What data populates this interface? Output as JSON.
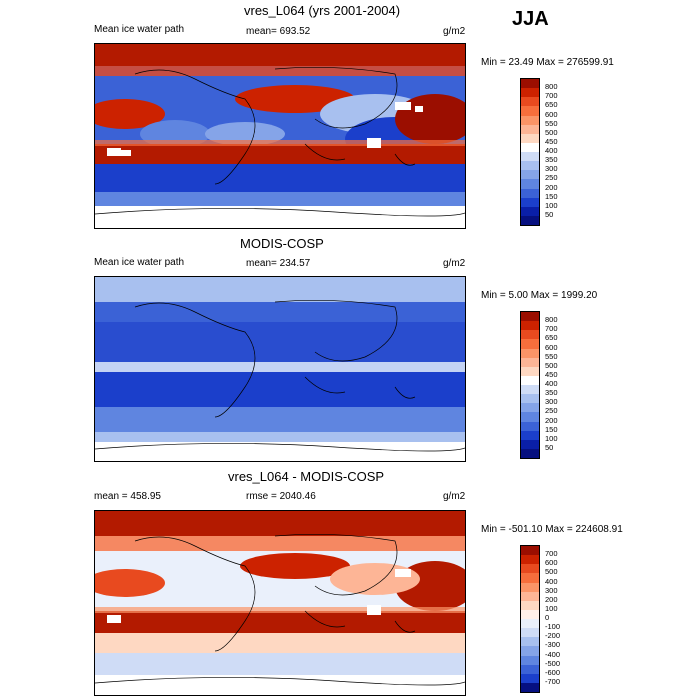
{
  "season": "JJA",
  "panels": [
    {
      "title": "vres_L064 (yrs 2001-2004)",
      "left_label": "Mean ice water path",
      "center_label": "mean= 693.52",
      "units": "g/m2",
      "minmax": "Min =  23.49 Max = 276599.91",
      "levels": [
        "800",
        "700",
        "650",
        "600",
        "550",
        "500",
        "450",
        "400",
        "350",
        "300",
        "250",
        "200",
        "150",
        "100",
        "50"
      ],
      "colors": [
        "#9b0e00",
        "#cc2200",
        "#e84a1f",
        "#f76e3c",
        "#fb9467",
        "#fdb596",
        "#fed8c2",
        "#ffffff",
        "#cfdcf6",
        "#a8c0ef",
        "#85a4e8",
        "#5f85e0",
        "#3b62d6",
        "#1b3fcb",
        "#0a1fa8",
        "#061080"
      ]
    },
    {
      "title": "MODIS-COSP",
      "left_label": "Mean ice water path",
      "center_label": "mean= 234.57",
      "units": "g/m2",
      "minmax": "Min =   5.00 Max = 1999.20",
      "levels": [
        "800",
        "700",
        "650",
        "600",
        "550",
        "500",
        "450",
        "400",
        "350",
        "300",
        "250",
        "200",
        "150",
        "100",
        "50"
      ],
      "colors": [
        "#9b0e00",
        "#cc2200",
        "#e84a1f",
        "#f76e3c",
        "#fb9467",
        "#fdb596",
        "#fed8c2",
        "#ffffff",
        "#cfdcf6",
        "#a8c0ef",
        "#85a4e8",
        "#5f85e0",
        "#3b62d6",
        "#1b3fcb",
        "#0a1fa8",
        "#061080"
      ]
    },
    {
      "title": "vres_L064 - MODIS-COSP",
      "left_label": "mean = 458.95",
      "center_label": "rmse = 2040.46",
      "units": "g/m2",
      "minmax": "Min = -501.10 Max = 224608.91",
      "levels": [
        "700",
        "600",
        "500",
        "400",
        "300",
        "200",
        "100",
        "0",
        "-100",
        "-200",
        "-300",
        "-400",
        "-500",
        "-600",
        "-700"
      ],
      "colors": [
        "#9b0e00",
        "#cc2200",
        "#e84a1f",
        "#f76e3c",
        "#fb9467",
        "#fdb596",
        "#fed8c2",
        "#fff0ea",
        "#eaf0fb",
        "#cfdcf6",
        "#a8c0ef",
        "#85a4e8",
        "#5f85e0",
        "#3b62d6",
        "#1b3fcb",
        "#061080"
      ]
    }
  ]
}
